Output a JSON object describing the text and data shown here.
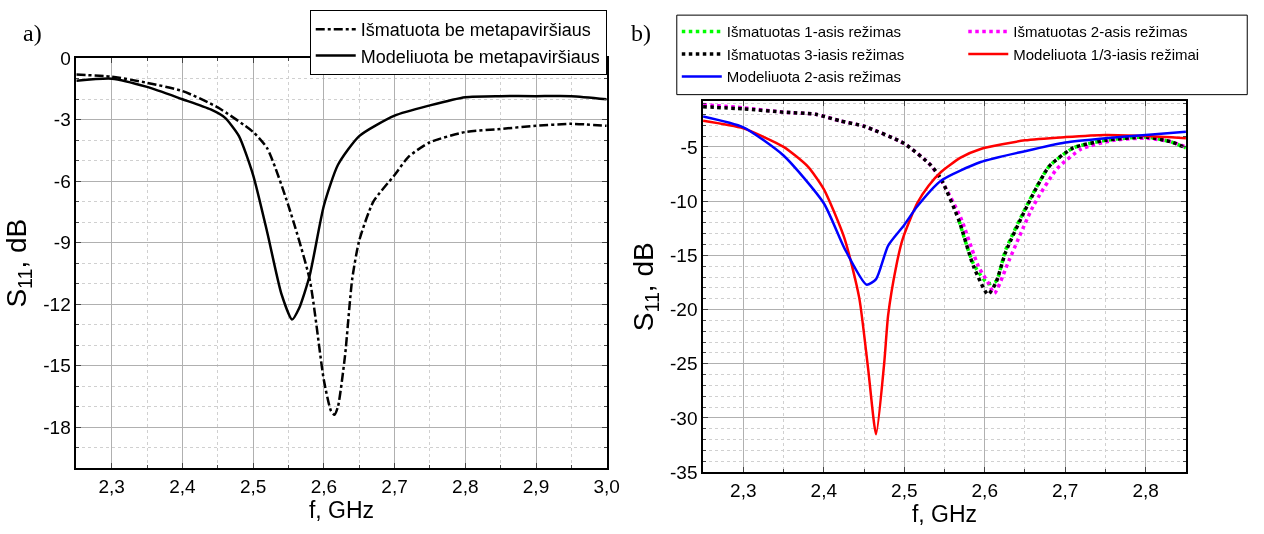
{
  "chart_data": [
    {
      "type": "line",
      "title": "a)",
      "xlabel": "f, GHz",
      "ylabel": "S$_{11}$, dB",
      "xlim": [
        2.25,
        3.0
      ],
      "ylim": [
        -20,
        0
      ],
      "xticks": [
        {
          "value": 2.3,
          "label": "2,3"
        },
        {
          "value": 2.4,
          "label": "2,4"
        },
        {
          "value": 2.5,
          "label": "2,5"
        },
        {
          "value": 2.6,
          "label": "2,6"
        },
        {
          "value": 2.7,
          "label": "2,7"
        },
        {
          "value": 2.8,
          "label": "2,8"
        },
        {
          "value": 2.9,
          "label": "2,9"
        },
        {
          "value": 3.0,
          "label": "3,0"
        }
      ],
      "yticks": [
        0,
        -3,
        -6,
        -9,
        -12,
        -15,
        -18
      ],
      "grid": true,
      "legend": "top right",
      "series": [
        {
          "name": "Išmatuota be metapaviršiaus",
          "color": "#000000",
          "line_style": "dashdot",
          "x": [
            2.25,
            2.3,
            2.35,
            2.4,
            2.45,
            2.5,
            2.52,
            2.55,
            2.58,
            2.6,
            2.61,
            2.615,
            2.62,
            2.63,
            2.64,
            2.65,
            2.67,
            2.7,
            2.72,
            2.75,
            2.8,
            2.85,
            2.9,
            2.95,
            3.0
          ],
          "values": [
            -0.8,
            -0.9,
            -1.2,
            -1.6,
            -2.4,
            -3.6,
            -4.4,
            -7.2,
            -10.8,
            -15.7,
            -17.2,
            -17.4,
            -17.0,
            -14.5,
            -10.8,
            -8.9,
            -7.0,
            -5.7,
            -4.8,
            -4.1,
            -3.6,
            -3.45,
            -3.3,
            -3.2,
            -3.3
          ]
        },
        {
          "name": "Modeliuota be metapaviršiaus",
          "color": "#000000",
          "line_style": "solid",
          "x": [
            2.25,
            2.3,
            2.35,
            2.4,
            2.44,
            2.46,
            2.48,
            2.5,
            2.52,
            2.54,
            2.555,
            2.565,
            2.58,
            2.6,
            2.62,
            2.65,
            2.7,
            2.75,
            2.8,
            2.85,
            2.9,
            2.95,
            3.0
          ],
          "values": [
            -1.1,
            -1.0,
            -1.4,
            -2.0,
            -2.5,
            -2.9,
            -3.8,
            -5.7,
            -8.5,
            -11.5,
            -12.75,
            -12.2,
            -10.6,
            -7.2,
            -5.2,
            -3.8,
            -2.8,
            -2.3,
            -1.9,
            -1.85,
            -1.85,
            -1.85,
            -2.0
          ]
        }
      ]
    },
    {
      "type": "line",
      "title": "b)",
      "xlabel": "f, GHz",
      "ylabel": "S$_{11}$, dB",
      "xlim": [
        2.25,
        2.85
      ],
      "ylim": [
        -35,
        -0.8
      ],
      "xticks": [
        {
          "value": 2.3,
          "label": "2,3"
        },
        {
          "value": 2.4,
          "label": "2,4"
        },
        {
          "value": 2.5,
          "label": "2,5"
        },
        {
          "value": 2.6,
          "label": "2,6"
        },
        {
          "value": 2.7,
          "label": "2,7"
        },
        {
          "value": 2.8,
          "label": "2,8"
        }
      ],
      "yticks": [
        -5,
        -10,
        -15,
        -20,
        -25,
        -30,
        -35
      ],
      "grid": true,
      "legend": "top",
      "series": [
        {
          "name": "Išmatuotas 1-asis režimas",
          "color": "#00ff00",
          "line_style": "dotted",
          "x": [
            2.568,
            2.586,
            2.604,
            2.614,
            2.626,
            2.653,
            2.68,
            2.71,
            2.75,
            2.8,
            2.83,
            2.85
          ],
          "values": [
            -11.8,
            -15.8,
            -17.6,
            -17.4,
            -14.5,
            -10.3,
            -6.8,
            -5.1,
            -4.4,
            -4.1,
            -4.5,
            -5.1
          ]
        },
        {
          "name": "Išmatuotas 2-asis režimas",
          "color": "#ff00ff",
          "line_style": "dotted",
          "x": [
            2.25,
            2.3,
            2.35,
            2.39,
            2.42,
            2.45,
            2.5,
            2.533,
            2.55,
            2.57,
            2.592,
            2.604,
            2.612,
            2.63,
            2.66,
            2.69,
            2.72,
            2.76,
            2.8,
            2.83,
            2.85
          ],
          "values": [
            -1.1,
            -1.4,
            -1.8,
            -2.0,
            -2.6,
            -3.1,
            -4.7,
            -6.7,
            -8.6,
            -11.5,
            -16.0,
            -17.5,
            -18.5,
            -15.5,
            -10.5,
            -7.0,
            -5.2,
            -4.4,
            -4.2,
            -4.5,
            -5.0
          ]
        },
        {
          "name": "Išmatuotas 3-iasis režimas",
          "color": "#000000",
          "line_style": "dotted",
          "x": [
            2.25,
            2.3,
            2.35,
            2.39,
            2.42,
            2.45,
            2.5,
            2.533,
            2.546,
            2.568,
            2.586,
            2.604,
            2.614,
            2.626,
            2.653,
            2.68,
            2.71,
            2.75,
            2.8,
            2.83,
            2.85
          ],
          "values": [
            -1.3,
            -1.5,
            -1.8,
            -2.0,
            -2.6,
            -3.1,
            -4.7,
            -6.7,
            -8.0,
            -11.8,
            -16.0,
            -18.6,
            -17.5,
            -14.7,
            -10.4,
            -6.8,
            -5.1,
            -4.4,
            -4.1,
            -4.5,
            -5.1
          ]
        },
        {
          "name": "Modeliuota 1/3-iasis režimai",
          "color": "#ff0000",
          "line_style": "solid",
          "x": [
            2.25,
            2.3,
            2.35,
            2.38,
            2.4,
            2.426,
            2.444,
            2.455,
            2.465,
            2.475,
            2.48,
            2.49,
            2.498,
            2.516,
            2.53,
            2.546,
            2.57,
            2.595,
            2.65,
            2.7,
            2.75,
            2.8,
            2.85
          ],
          "values": [
            -2.6,
            -3.3,
            -5.0,
            -6.8,
            -8.9,
            -13.5,
            -18.9,
            -25.4,
            -31.5,
            -25.0,
            -20.5,
            -16.0,
            -13.5,
            -10.2,
            -8.6,
            -7.3,
            -6.0,
            -5.2,
            -4.4,
            -4.1,
            -3.9,
            -4.0,
            -4.2
          ]
        },
        {
          "name": "Modeliuota 2-asis režimas",
          "color": "#0000ff",
          "line_style": "solid",
          "x": [
            2.25,
            2.3,
            2.35,
            2.4,
            2.426,
            2.453,
            2.465,
            2.48,
            2.5,
            2.516,
            2.546,
            2.595,
            2.65,
            2.7,
            2.75,
            2.8,
            2.85
          ],
          "values": [
            -2.2,
            -3.2,
            -5.8,
            -10.2,
            -14.4,
            -17.7,
            -17.2,
            -14.1,
            -12.2,
            -10.5,
            -8.1,
            -6.4,
            -5.4,
            -4.6,
            -4.2,
            -3.9,
            -3.6
          ]
        }
      ]
    }
  ]
}
